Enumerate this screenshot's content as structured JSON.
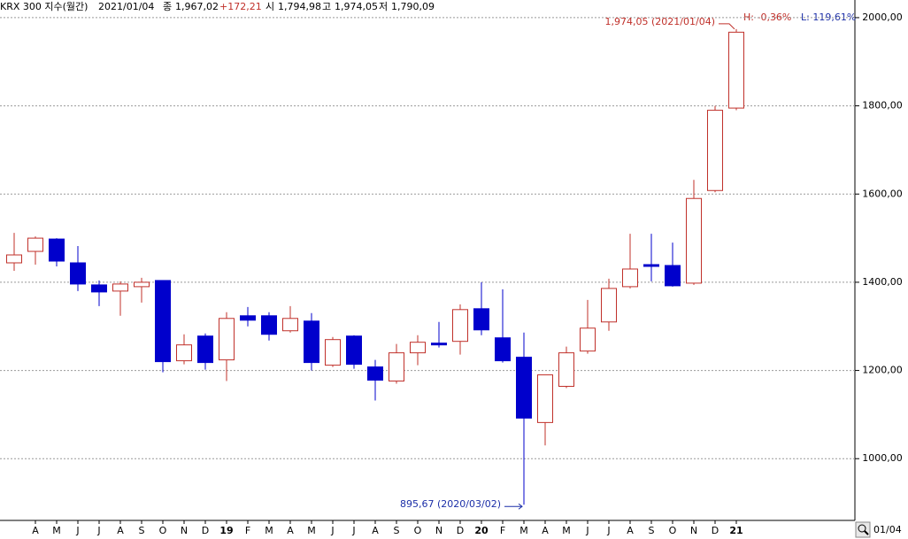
{
  "chart_data": {
    "type": "candlestick",
    "header": {
      "title": "KRX 300 지수(월간)",
      "date": "2021/01/04",
      "close_label": "종",
      "close": "1,967,02",
      "change": "+172,21",
      "open_label": "시",
      "open": "1,794,98",
      "high_label": "고",
      "high": "1,974,05",
      "low_label": "저",
      "low": "1,790,09"
    },
    "range_info": {
      "high": "H: -0,36%",
      "low": "L: 119,61%"
    },
    "annotations": [
      {
        "text": "1,974,05 (2021/01/04)",
        "color": "#c0302a"
      },
      {
        "text": "895,67 (2020/03/02)",
        "color": "#1c2fa8"
      }
    ],
    "footer_date": "01/04",
    "categories": [
      null,
      "A",
      "M",
      "J",
      "J",
      "A",
      "S",
      "O",
      "N",
      "D",
      "19",
      "F",
      "M",
      "A",
      "M",
      "J",
      "J",
      "A",
      "S",
      "O",
      "N",
      "D",
      "20",
      "F",
      "M",
      "A",
      "M",
      "J",
      "J",
      "A",
      "S",
      "O",
      "N",
      "D",
      "21"
    ],
    "bold_categories": [
      "19",
      "20",
      "21"
    ],
    "open": [
      1444,
      1470,
      1498,
      1444,
      1394,
      1380,
      1390,
      1404,
      1222,
      1278,
      1224,
      1324,
      1324,
      1290,
      1312,
      1212,
      1278,
      1208,
      1176,
      1240,
      1262,
      1266,
      1340,
      1274,
      1230,
      1082,
      1164,
      1244,
      1310,
      1390,
      1440,
      1438,
      1398,
      1608,
      1794.98
    ],
    "high": [
      1512,
      1504,
      1500,
      1482,
      1404,
      1402,
      1410,
      1404,
      1282,
      1284,
      1332,
      1344,
      1332,
      1346,
      1330,
      1276,
      1280,
      1224,
      1260,
      1280,
      1310,
      1350,
      1400,
      1384,
      1286,
      1190,
      1254,
      1360,
      1408,
      1510,
      1510,
      1490,
      1632,
      1800,
      1974.05
    ],
    "low": [
      1426,
      1440,
      1436,
      1380,
      1346,
      1324,
      1354,
      1196,
      1214,
      1202,
      1176,
      1300,
      1268,
      1286,
      1200,
      1208,
      1204,
      1132,
      1170,
      1212,
      1252,
      1236,
      1280,
      1218,
      895.67,
      1030,
      1160,
      1238,
      1290,
      1386,
      1402,
      1390,
      1394,
      1604,
      1790.09
    ],
    "close": [
      1462,
      1500,
      1448,
      1396,
      1378,
      1396,
      1400,
      1220,
      1258,
      1218,
      1318,
      1314,
      1282,
      1318,
      1218,
      1270,
      1214,
      1178,
      1240,
      1264,
      1258,
      1338,
      1292,
      1222,
      1092,
      1190,
      1240,
      1296,
      1386,
      1430,
      1436,
      1392,
      1590,
      1790,
      1967.02
    ],
    "up_color": "#c0302a",
    "down_color": "#0000cc",
    "ylim": [
      860,
      2040
    ],
    "yticks": [
      {
        "value": 1000,
        "label": "1000,00"
      },
      {
        "value": 1200,
        "label": "1200,00"
      },
      {
        "value": 1400,
        "label": "1400,00"
      },
      {
        "value": 1600,
        "label": "1600,00"
      },
      {
        "value": 1800,
        "label": "1800,00"
      },
      {
        "value": 2000,
        "label": "2000,00"
      }
    ],
    "grid": true
  }
}
